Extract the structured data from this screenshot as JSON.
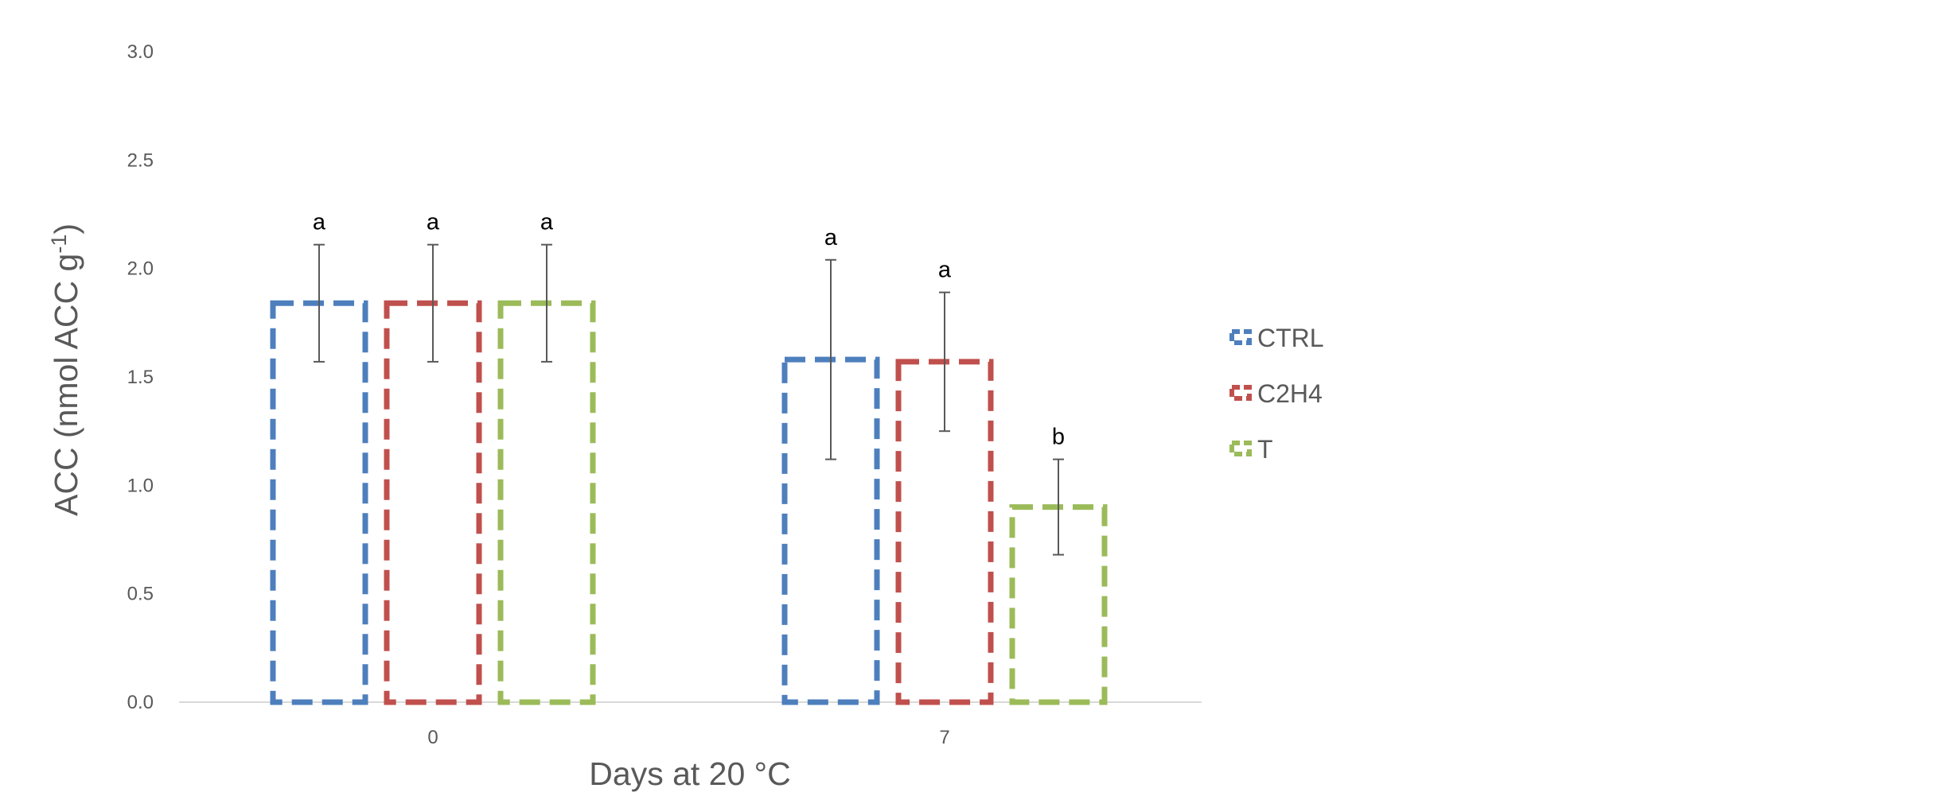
{
  "chart_data": {
    "type": "bar",
    "title": "",
    "xlabel": "Days at 20 °C",
    "ylabel": "ACC (nmol ACC g",
    "ylabel_superscript": "-1",
    "ylabel_close": ")",
    "categories": [
      "0",
      "7"
    ],
    "ylim": [
      0,
      3.0
    ],
    "yticks": [
      "0.0",
      "0.5",
      "1.0",
      "1.5",
      "2.0",
      "2.5",
      "3.0"
    ],
    "grid": false,
    "legend_position": "right",
    "bar_style": "dashed-outline",
    "series": [
      {
        "name": "CTRL",
        "color": "#4e7fbd",
        "values": [
          1.84,
          1.58
        ],
        "errors": [
          0.27,
          0.46
        ],
        "letters": [
          "a",
          "a"
        ]
      },
      {
        "name": "C2H4",
        "color": "#c0504d",
        "values": [
          1.84,
          1.57
        ],
        "errors": [
          0.27,
          0.32
        ],
        "letters": [
          "a",
          "a"
        ]
      },
      {
        "name": "T",
        "color": "#9bbb59",
        "values": [
          1.84,
          0.9
        ],
        "errors": [
          0.27,
          0.22
        ],
        "letters": [
          "a",
          "b"
        ]
      }
    ]
  }
}
